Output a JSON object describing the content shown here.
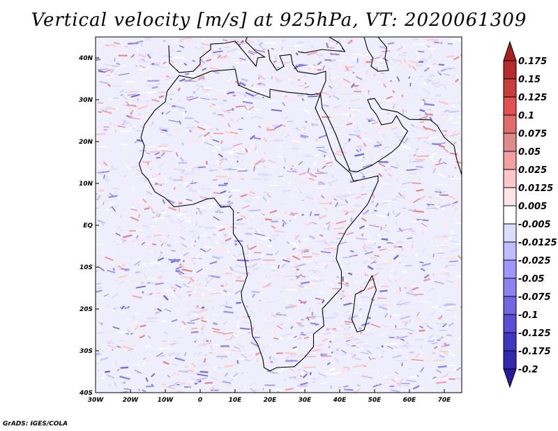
{
  "title": "Vertical velocity [m/s] at 925hPa, VT: 2020061309",
  "footer": "GrADS: IGES/COLA",
  "map": {
    "lon_range": [
      -30,
      75
    ],
    "lat_range": [
      -40,
      45
    ],
    "lon_ticks": [
      "30W",
      "20W",
      "10W",
      "0",
      "10E",
      "20E",
      "30E",
      "40E",
      "50E",
      "60E",
      "70E"
    ],
    "lat_ticks": [
      "40S",
      "30S",
      "20S",
      "10S",
      "EQ",
      "10N",
      "20N",
      "30N",
      "40N"
    ]
  },
  "colorbar": {
    "labels": [
      "0.175",
      "0.15",
      "0.125",
      "0.1",
      "0.075",
      "0.05",
      "0.025",
      "0.0125",
      "0.005",
      "-0.005",
      "-0.0125",
      "-0.025",
      "-0.05",
      "-0.075",
      "-0.1",
      "-0.125",
      "-0.175",
      "-0.2"
    ],
    "colors": [
      "#a82020",
      "#b82a2a",
      "#cc3c3c",
      "#e45050",
      "#e26c6c",
      "#e08a8a",
      "#f5a0a0",
      "#fcc8c8",
      "#ffe6e6",
      "#ffffff",
      "#dcdcff",
      "#bebeff",
      "#a096ff",
      "#8c82f0",
      "#7266e4",
      "#5a4ed6",
      "#4036c4",
      "#3228b2",
      "#2a1aa0"
    ]
  }
}
